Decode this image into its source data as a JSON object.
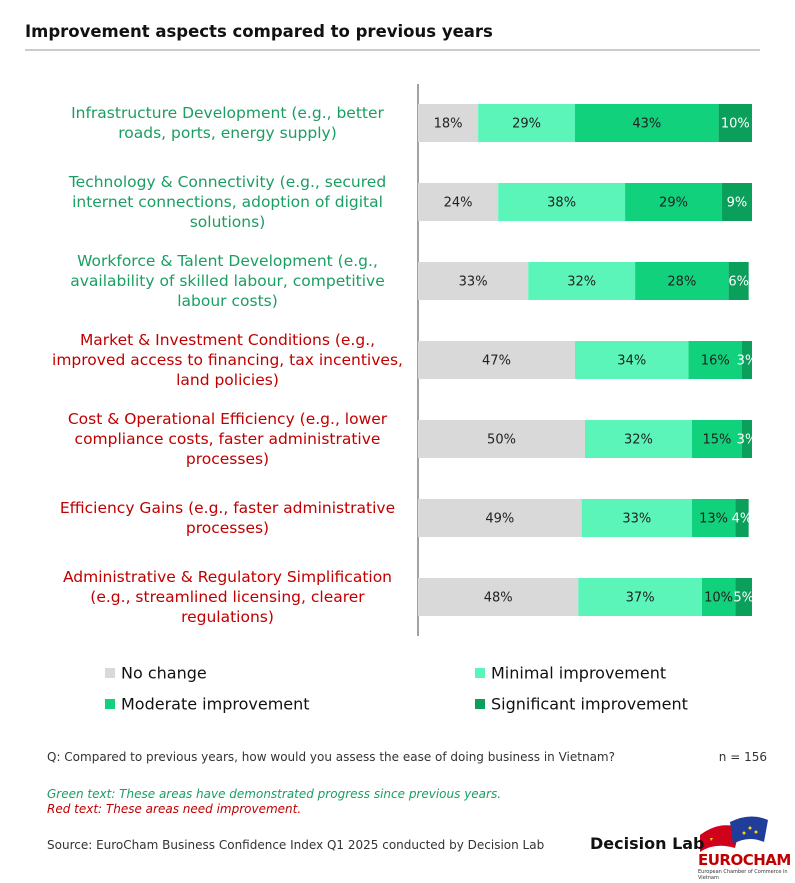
{
  "chart_data": {
    "type": "stacked-bar-horizontal",
    "title": "Improvement aspects compared to previous years",
    "categories": [
      "Infrastructure Development (e.g., better roads, ports, energy supply)",
      "Technology & Connectivity (e.g., secured internet connections, adoption of digital solutions)",
      "Workforce & Talent Development (e.g., availability of skilled labour, competitive labour costs)",
      "Market & Investment Conditions (e.g., improved access to financing, tax incentives, land policies)",
      "Cost & Operational Efficiency (e.g., lower compliance costs, faster administrative processes)",
      "Efficiency Gains (e.g., faster administrative processes)",
      "Administrative & Regulatory Simplification (e.g., streamlined licensing, clearer regulations)"
    ],
    "category_colors": [
      "#1a9e62",
      "#1a9e62",
      "#1a9e62",
      "#c00000",
      "#c00000",
      "#c00000",
      "#c00000"
    ],
    "xlim": [
      0,
      100
    ],
    "series": [
      {
        "name": "No change",
        "color": "#d9d9d9",
        "label_color": "#222222",
        "values": [
          18,
          24,
          33,
          47,
          50,
          49,
          48
        ],
        "value_labels": [
          "18%",
          "24%",
          "33%",
          "47%",
          "50%",
          "49%",
          "48%"
        ]
      },
      {
        "name": "Minimal improvement",
        "color": "#5cf5b9",
        "label_color": "#222222",
        "values": [
          29,
          38,
          32,
          34,
          32,
          33,
          37
        ],
        "value_labels": [
          "29%",
          "38%",
          "32%",
          "34%",
          "32%",
          "33%",
          "37%"
        ]
      },
      {
        "name": "Moderate improvement",
        "color": "#12d17c",
        "label_color": "#222222",
        "values": [
          43,
          29,
          28,
          16,
          15,
          13,
          10
        ],
        "value_labels": [
          "43%",
          "29%",
          "28%",
          "16%",
          "15%",
          "13%",
          "10%"
        ]
      },
      {
        "name": "Significant improvement",
        "color": "#0a9f5a",
        "label_color": "#ffffff",
        "values": [
          10,
          9,
          6,
          3,
          3,
          4,
          5
        ],
        "value_labels": [
          "10%",
          "9%",
          "6%",
          "3%",
          "3%",
          "4%",
          "5%"
        ]
      }
    ],
    "question": "Q: Compared to previous years, how would you assess the ease of doing business in Vietnam?",
    "sample": "n = 156",
    "notes": [
      {
        "text": "Green text: These areas have demonstrated progress since previous years.",
        "color": "#1a9e62"
      },
      {
        "text": "Red text: These areas need improvement.",
        "color": "#c00000"
      }
    ],
    "source": "Source: EuroCham Business Confidence Index Q1 2025 conducted by Decision Lab",
    "logos": {
      "decision_lab": "Decision Lab",
      "eurocham": "EUROCHAM",
      "eurocham_sub": "European Chamber of Commerce in Vietnam"
    }
  }
}
